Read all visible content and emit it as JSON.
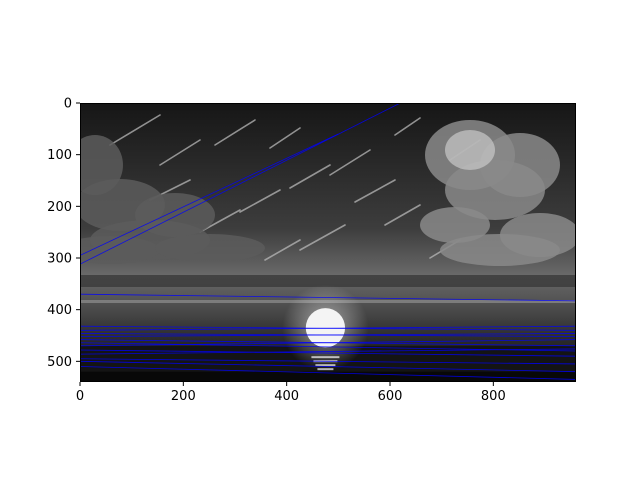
{
  "chart_data": {
    "type": "image",
    "title": "",
    "xlabel": "",
    "ylabel": "",
    "xlim": [
      0,
      960
    ],
    "ylim": [
      540,
      0
    ],
    "xticks": [
      0,
      200,
      400,
      600,
      800
    ],
    "yticks": [
      0,
      100,
      200,
      300,
      400,
      500
    ],
    "image": {
      "colormap": "gray",
      "content": "moonlit sky with clouds and meteor streaks over water",
      "moon": {
        "cx": 475,
        "cy": 435,
        "r": 38
      }
    },
    "line_color": "#0000ff",
    "lines": [
      {
        "x": [
          0,
          620
        ],
        "y": [
          312,
          0
        ]
      },
      {
        "x": [
          0,
          500
        ],
        "y": [
          295,
          60
        ]
      },
      {
        "x": [
          0,
          960
        ],
        "y": [
          370,
          383
        ]
      },
      {
        "x": [
          0,
          960
        ],
        "y": [
          432,
          440
        ]
      },
      {
        "x": [
          0,
          960
        ],
        "y": [
          440,
          432
        ]
      },
      {
        "x": [
          0,
          960
        ],
        "y": [
          446,
          452
        ]
      },
      {
        "x": [
          0,
          960
        ],
        "y": [
          452,
          446
        ]
      },
      {
        "x": [
          0,
          960
        ],
        "y": [
          458,
          470
        ]
      },
      {
        "x": [
          0,
          960
        ],
        "y": [
          464,
          480
        ]
      },
      {
        "x": [
          0,
          960
        ],
        "y": [
          470,
          458
        ]
      },
      {
        "x": [
          0,
          960
        ],
        "y": [
          478,
          490
        ]
      },
      {
        "x": [
          0,
          960
        ],
        "y": [
          486,
          476
        ]
      },
      {
        "x": [
          0,
          960
        ],
        "y": [
          495,
          505
        ]
      },
      {
        "x": [
          0,
          960
        ],
        "y": [
          500,
          520
        ]
      },
      {
        "x": [
          0,
          960
        ],
        "y": [
          510,
          535
        ]
      }
    ]
  }
}
